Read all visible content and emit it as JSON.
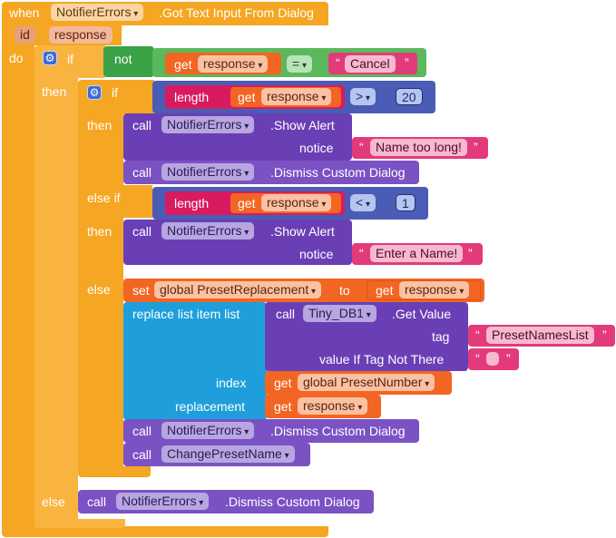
{
  "event": {
    "when": "when",
    "component": "NotifierErrors",
    "event_name": ".Got Text Input From Dialog",
    "param": "id",
    "param_name": "response",
    "do": "do"
  },
  "outer_if": {
    "if": "if",
    "not": "not",
    "get": "get",
    "var": "response",
    "op": "=",
    "string": "Cancel",
    "then": "then",
    "else": "else"
  },
  "inner_if": {
    "if": "if",
    "length": "length",
    "get": "get",
    "var": "response",
    "op_gt": ">",
    "num_20": "20",
    "then": "then",
    "else_if": "else if",
    "op_lt": "<",
    "num_1": "1",
    "else": "else"
  },
  "blocks": {
    "call": "call",
    "notifier": "NotifierErrors",
    "show_alert": ".Show Alert",
    "notice": "notice",
    "msg_long": "Name too long!",
    "dismiss": ".Dismiss Custom Dialog",
    "msg_enter": "Enter a Name!",
    "set": "set",
    "global_preset_replacement": "global PresetReplacement",
    "to": "to",
    "get": "get",
    "response": "response",
    "replace_list": "replace list item  list",
    "tinydb": "Tiny_DB1",
    "get_value": ".Get Value",
    "tag": "tag",
    "tag_value": "PresetNamesList",
    "value_if_not": "value If Tag Not There",
    "empty_string": "",
    "index": "index",
    "global_preset_number": "global PresetNumber",
    "replacement": "replacement",
    "change_preset": "ChangePresetName"
  },
  "quote_open": "“",
  "quote_close": "”"
}
